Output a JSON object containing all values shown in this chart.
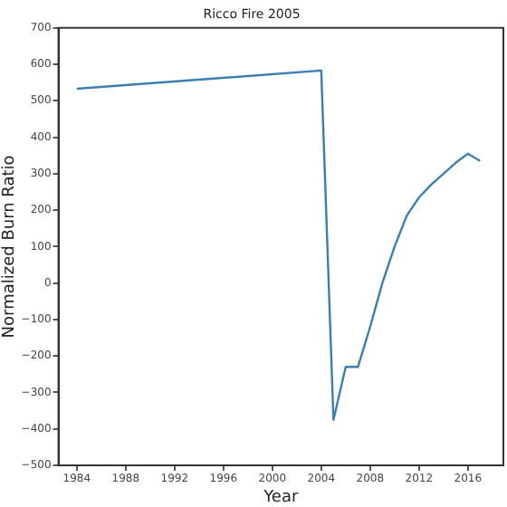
{
  "chart_data": {
    "type": "line",
    "title": "Ricco Fire 2005",
    "xlabel": "Year",
    "ylabel": "Normalized Burn Ratio",
    "x": [
      1984,
      2004,
      2005,
      2006,
      2007,
      2008,
      2009,
      2010,
      2011,
      2012,
      2013,
      2014,
      2015,
      2016,
      2017
    ],
    "series": [
      {
        "color": "#3b7fb0",
        "values": [
          533,
          583,
          -375,
          -230,
          -230,
          -120,
          0,
          100,
          185,
          235,
          270,
          300,
          330,
          355,
          335
        ]
      }
    ],
    "xlim": [
      1982.5,
      2018.9
    ],
    "xticks": [
      1984,
      1988,
      1992,
      1996,
      2000,
      2004,
      2008,
      2012,
      2016
    ],
    "ylim": [
      -500,
      700
    ],
    "yticks": [
      -500,
      -400,
      -300,
      -200,
      -100,
      0,
      100,
      200,
      300,
      400,
      500,
      600,
      700
    ],
    "grid": false,
    "legend": false,
    "marker": "none",
    "line_style": "solid"
  }
}
